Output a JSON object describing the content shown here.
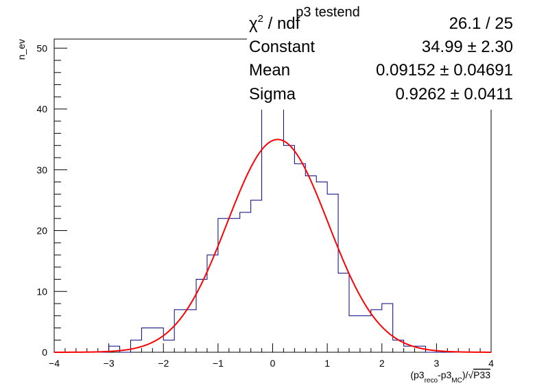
{
  "chart_data": {
    "type": "histogram",
    "title": "p3 testend",
    "xlabel": {
      "parts": [
        "(p3",
        "reco",
        "-p3",
        "MC",
        ")/",
        "√",
        "P33"
      ]
    },
    "ylabel": "n_ev",
    "xlim": [
      -4,
      4
    ],
    "ylim": [
      0,
      51.5
    ],
    "x_ticks": [
      -4,
      -3,
      -2,
      -1,
      0,
      1,
      2,
      3,
      4
    ],
    "x_tick_labels": [
      "−4",
      "−3",
      "−2",
      "−1",
      "0",
      "1",
      "2",
      "3",
      "4"
    ],
    "y_ticks": [
      0,
      10,
      20,
      30,
      40,
      50
    ],
    "y_tick_labels": [
      "0",
      "10",
      "20",
      "30",
      "40",
      "50"
    ],
    "bins": {
      "edges": [
        -4.0,
        -3.8,
        -3.6,
        -3.4,
        -3.2,
        -3.0,
        -2.8,
        -2.6,
        -2.4,
        -2.2,
        -2.0,
        -1.8,
        -1.6,
        -1.4,
        -1.2,
        -1.0,
        -0.8,
        -0.6,
        -0.4,
        -0.2,
        0.0,
        0.2,
        0.4,
        0.6,
        0.8,
        1.0,
        1.2,
        1.4,
        1.6,
        1.8,
        2.0,
        2.2,
        2.4,
        2.6,
        2.8,
        3.0,
        3.2,
        3.4,
        3.6,
        3.8,
        4.0
      ],
      "counts": [
        0,
        0,
        0,
        0,
        0,
        1,
        0,
        2,
        4,
        4,
        2,
        7,
        7,
        12,
        16,
        22,
        22,
        23,
        25,
        48,
        49,
        34,
        31,
        29,
        28,
        26,
        13,
        6,
        6,
        7,
        8,
        2,
        1,
        1,
        0,
        0,
        0,
        0,
        0,
        0
      ]
    },
    "series": [
      {
        "kind": "histogram",
        "color": "#000080"
      },
      {
        "kind": "gaussian-fit",
        "color": "#ff0000",
        "constant": 34.99,
        "mean": 0.09152,
        "sigma": 0.9262
      }
    ],
    "stats": [
      {
        "label_main": "χ",
        "label_sup": "2",
        "label_rest": " / ndf",
        "value": "26.1 / 25"
      },
      {
        "label_main": "Constant",
        "value": "34.99 ± 2.30"
      },
      {
        "label_main": "Mean",
        "value": "0.09152 ± 0.04691"
      },
      {
        "label_main": "Sigma",
        "value": "0.9262 ± 0.0411"
      }
    ]
  }
}
